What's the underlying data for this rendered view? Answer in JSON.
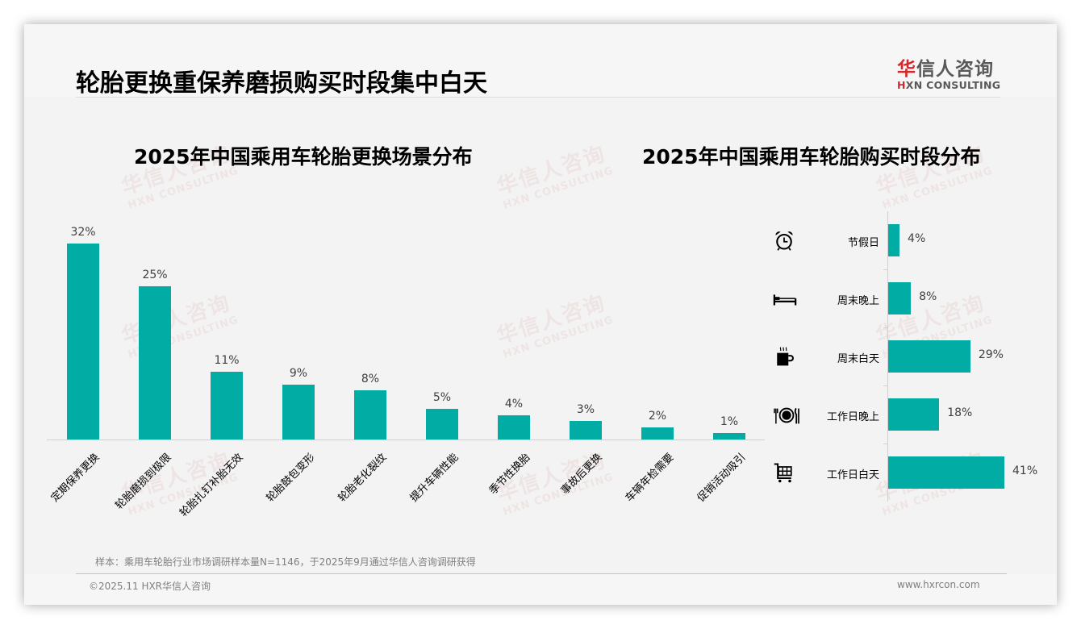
{
  "header": {
    "title": "轮胎更换重保养磨损购买时段集中白天",
    "logo_cn_first": "华",
    "logo_cn_rest": "信人咨询",
    "logo_en_mark": "H",
    "logo_en_rest": "XN CONSULTING"
  },
  "watermark": {
    "cn": "华信人咨询",
    "en": "HXN CONSULTING"
  },
  "colors": {
    "bar": "#00aca4",
    "brand_red": "#d9262b",
    "background": "#f3f3f3"
  },
  "left_chart": {
    "title": "2025年中国乘用车轮胎更换场景分布"
  },
  "right_chart": {
    "title": "2025年中国乘用车轮胎购买时段分布",
    "icons": [
      "alarm-clock-icon",
      "bed-icon",
      "coffee-cup-icon",
      "plate-cutlery-icon",
      "shopping-cart-icon"
    ]
  },
  "chart_data": [
    {
      "type": "bar",
      "orientation": "vertical",
      "title": "2025年中国乘用车轮胎更换场景分布",
      "categories": [
        "定期保养更换",
        "轮胎磨损到极限",
        "轮胎扎钉补胎无效",
        "轮胎鼓包变形",
        "轮胎老化裂纹",
        "提升车辆性能",
        "季节性换胎",
        "事故后更换",
        "车辆年检需要",
        "促销活动吸引"
      ],
      "values": [
        32,
        25,
        11,
        9,
        8,
        5,
        4,
        3,
        2,
        1
      ],
      "labels": [
        "32%",
        "25%",
        "11%",
        "9%",
        "8%",
        "5%",
        "4%",
        "3%",
        "2%",
        "1%"
      ],
      "unit": "%",
      "xlabel": "",
      "ylabel": "",
      "grid": false,
      "legend": null
    },
    {
      "type": "bar",
      "orientation": "horizontal",
      "title": "2025年中国乘用车轮胎购买时段分布",
      "categories": [
        "节假日",
        "周末晚上",
        "周末白天",
        "工作日晚上",
        "工作日白天"
      ],
      "values": [
        4,
        8,
        29,
        18,
        41
      ],
      "labels": [
        "4%",
        "8%",
        "29%",
        "18%",
        "41%"
      ],
      "unit": "%",
      "xlabel": "",
      "ylabel": "",
      "grid": false,
      "legend": null
    }
  ],
  "footer": {
    "note": "样本：乘用车轮胎行业市场调研样本量N=1146，于2025年9月通过华信人咨询调研获得",
    "copyright": "©2025.11 HXR华信人咨询",
    "website": "www.hxrcon.com"
  }
}
